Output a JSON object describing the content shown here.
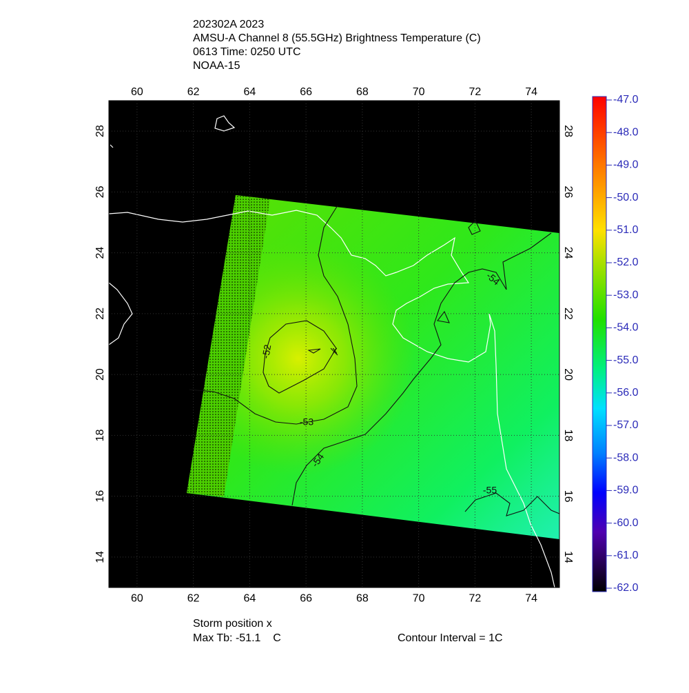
{
  "header": {
    "lines": [
      "202302A 2023",
      "AMSU-A Channel 8 (55.5GHz) Brightness Temperature (C)",
      "0613 Time: 0250 UTC",
      "NOAA-15"
    ]
  },
  "map": {
    "xlim": [
      59,
      75
    ],
    "ylim": [
      13,
      29
    ],
    "xticks": [
      60,
      62,
      64,
      66,
      68,
      70,
      72,
      74
    ],
    "yticks": [
      14,
      16,
      18,
      20,
      22,
      24,
      26,
      28
    ],
    "contour_labels": [
      -52,
      -53,
      -54,
      -54,
      -55
    ]
  },
  "colorbar": {
    "range": [
      -62,
      -47
    ],
    "ticks": [
      {
        "value": -47,
        "label": "-47.0"
      },
      {
        "value": -48,
        "label": "-48.0"
      },
      {
        "value": -49,
        "label": "-49.0"
      },
      {
        "value": -50,
        "label": "-50.0"
      },
      {
        "value": -51,
        "label": "-51.0"
      },
      {
        "value": -52,
        "label": "-52.0"
      },
      {
        "value": -53,
        "label": "-53.0"
      },
      {
        "value": -54,
        "label": "-54.0"
      },
      {
        "value": -55,
        "label": "-55.0"
      },
      {
        "value": -56,
        "label": "-56.0"
      },
      {
        "value": -57,
        "label": "-57.0"
      },
      {
        "value": -58,
        "label": "-58.0"
      },
      {
        "value": -59,
        "label": "-59.0"
      },
      {
        "value": -60,
        "label": "-60.0"
      },
      {
        "value": -61,
        "label": "-61.0"
      },
      {
        "value": -62,
        "label": "-62.0"
      }
    ]
  },
  "footer": {
    "storm": "Storm position x",
    "max_tb": "Max Tb: -51.1    C",
    "interval": "Contour Interval = 1C"
  }
}
